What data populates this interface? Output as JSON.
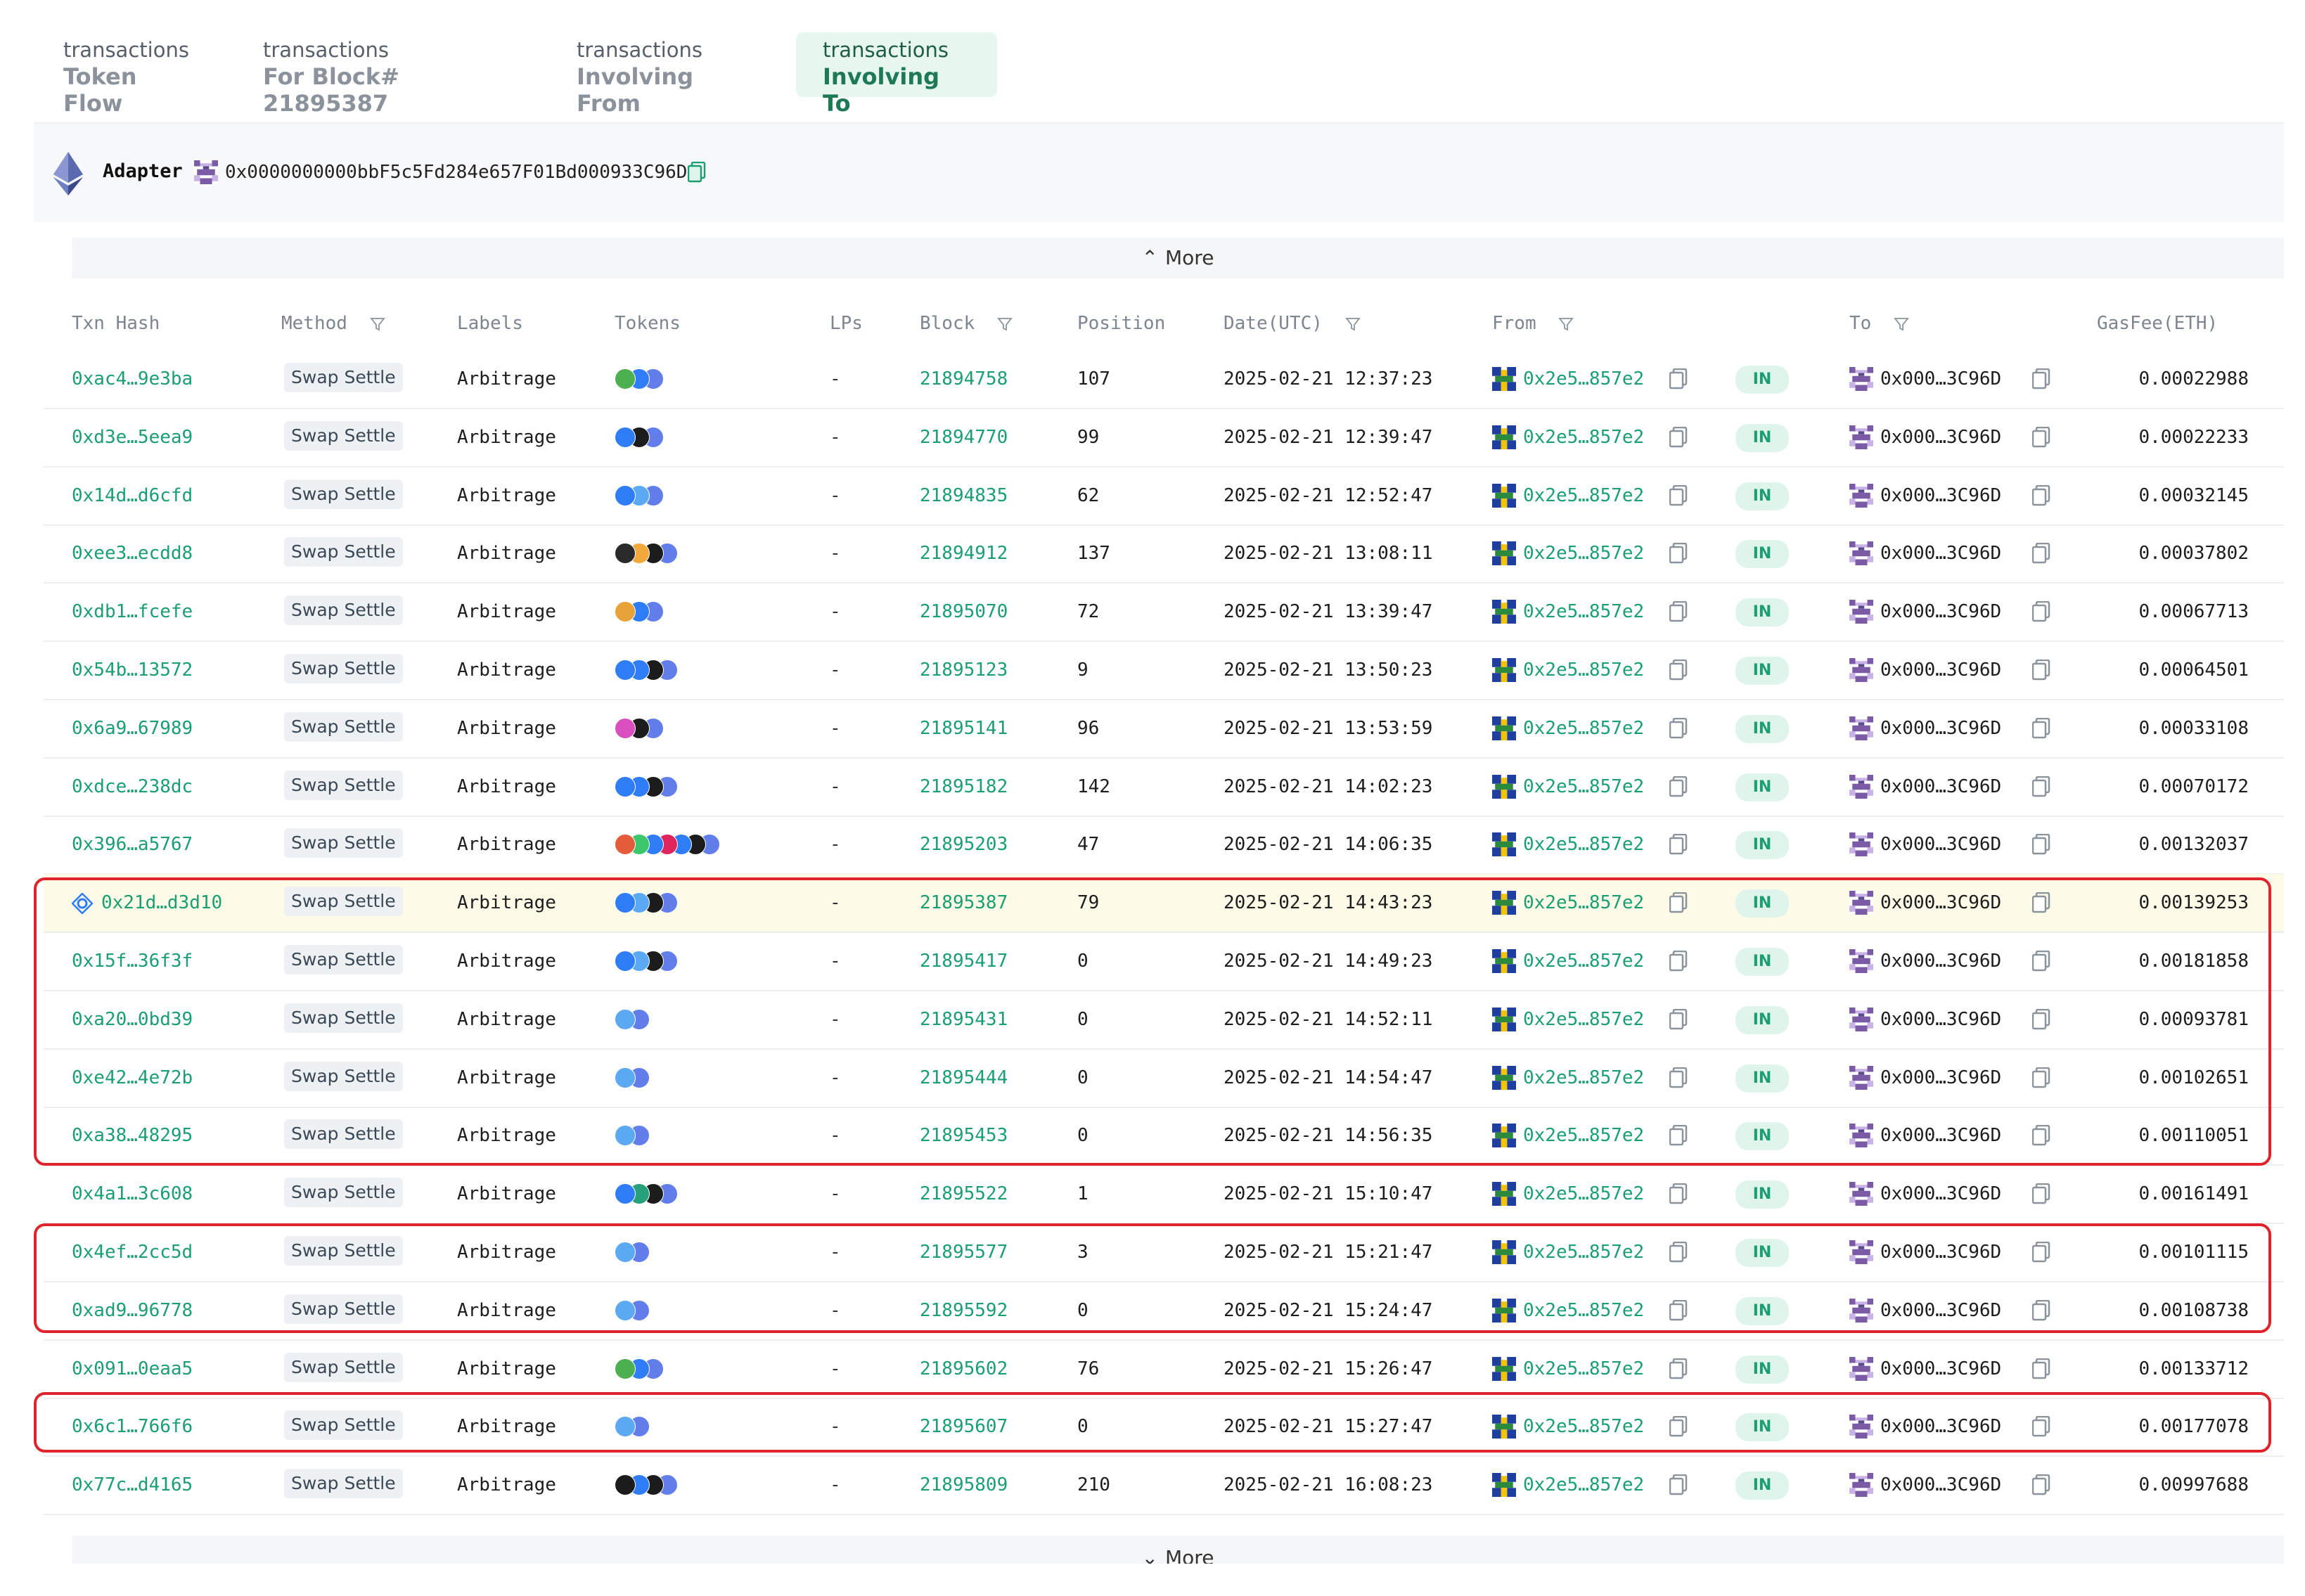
{
  "tabs": [
    {
      "small": "transactions",
      "main": "Token Flow",
      "active": false
    },
    {
      "small": "transactions",
      "main": "For Block# 21895387",
      "active": false
    },
    {
      "small": "transactions",
      "main": "Involving From",
      "active": false
    },
    {
      "small": "transactions",
      "main": "Involving To",
      "active": true
    }
  ],
  "adapter": {
    "label": "Adapter",
    "address": "0x0000000000bbF5c5Fd284e657F01Bd000933C96D",
    "icon": "ethereum-icon"
  },
  "more_label": "More",
  "columns": {
    "txn_hash": "Txn Hash",
    "method": "Method",
    "labels": "Labels",
    "tokens": "Tokens",
    "lps": "LPs",
    "block": "Block",
    "position": "Position",
    "date": "Date(UTC)",
    "from": "From",
    "to": "To",
    "gas": "GasFee(ETH)"
  },
  "rows": [
    {
      "hash": "0xac4…9e3ba",
      "method": "Swap Settle",
      "label": "Arbitrage",
      "tokens": [
        "#4caf50",
        "#2e7df6",
        "#627eea"
      ],
      "lps": "-",
      "block": "21894758",
      "position": "107",
      "date": "2025-02-21 12:37:23",
      "from": "0x2e5…857e2",
      "dir": "IN",
      "to": "0x000…3C96D",
      "gas": "0.00022988",
      "highlight": false
    },
    {
      "hash": "0xd3e…5eea9",
      "method": "Swap Settle",
      "label": "Arbitrage",
      "tokens": [
        "#2e7df6",
        "#1c1c1c",
        "#627eea"
      ],
      "lps": "-",
      "block": "21894770",
      "position": "99",
      "date": "2025-02-21 12:39:47",
      "from": "0x2e5…857e2",
      "dir": "IN",
      "to": "0x000…3C96D",
      "gas": "0.00022233",
      "highlight": false
    },
    {
      "hash": "0x14d…d6cfd",
      "method": "Swap Settle",
      "label": "Arbitrage",
      "tokens": [
        "#2e7df6",
        "#5aa9f2",
        "#627eea"
      ],
      "lps": "-",
      "block": "21894835",
      "position": "62",
      "date": "2025-02-21 12:52:47",
      "from": "0x2e5…857e2",
      "dir": "IN",
      "to": "0x000…3C96D",
      "gas": "0.00032145",
      "highlight": false
    },
    {
      "hash": "0xee3…ecdd8",
      "method": "Swap Settle",
      "label": "Arbitrage",
      "tokens": [
        "#2a2a2a",
        "#f2a93b",
        "#1c1c1c",
        "#627eea"
      ],
      "lps": "-",
      "block": "21894912",
      "position": "137",
      "date": "2025-02-21 13:08:11",
      "from": "0x2e5…857e2",
      "dir": "IN",
      "to": "0x000…3C96D",
      "gas": "0.00037802",
      "highlight": false
    },
    {
      "hash": "0xdb1…fcefe",
      "method": "Swap Settle",
      "label": "Arbitrage",
      "tokens": [
        "#e8a23a",
        "#2e7df6",
        "#627eea"
      ],
      "lps": "-",
      "block": "21895070",
      "position": "72",
      "date": "2025-02-21 13:39:47",
      "from": "0x2e5…857e2",
      "dir": "IN",
      "to": "0x000…3C96D",
      "gas": "0.00067713",
      "highlight": false
    },
    {
      "hash": "0x54b…13572",
      "method": "Swap Settle",
      "label": "Arbitrage",
      "tokens": [
        "#2e7df6",
        "#2e7df6",
        "#1c1c1c",
        "#627eea"
      ],
      "lps": "-",
      "block": "21895123",
      "position": "9",
      "date": "2025-02-21 13:50:23",
      "from": "0x2e5…857e2",
      "dir": "IN",
      "to": "0x000…3C96D",
      "gas": "0.00064501",
      "highlight": false
    },
    {
      "hash": "0x6a9…67989",
      "method": "Swap Settle",
      "label": "Arbitrage",
      "tokens": [
        "#d94fbf",
        "#1c1c1c",
        "#627eea"
      ],
      "lps": "-",
      "block": "21895141",
      "position": "96",
      "date": "2025-02-21 13:53:59",
      "from": "0x2e5…857e2",
      "dir": "IN",
      "to": "0x000…3C96D",
      "gas": "0.00033108",
      "highlight": false
    },
    {
      "hash": "0xdce…238dc",
      "method": "Swap Settle",
      "label": "Arbitrage",
      "tokens": [
        "#2e7df6",
        "#2e7df6",
        "#1c1c1c",
        "#627eea"
      ],
      "lps": "-",
      "block": "21895182",
      "position": "142",
      "date": "2025-02-21 14:02:23",
      "from": "0x2e5…857e2",
      "dir": "IN",
      "to": "0x000…3C96D",
      "gas": "0.00070172",
      "highlight": false
    },
    {
      "hash": "0x396…a5767",
      "method": "Swap Settle",
      "label": "Arbitrage",
      "tokens": [
        "#e45c3a",
        "#3cc76a",
        "#2e7df6",
        "#e0245e",
        "#2e7df6",
        "#1c1c1c",
        "#627eea"
      ],
      "lps": "-",
      "block": "21895203",
      "position": "47",
      "date": "2025-02-21 14:06:35",
      "from": "0x2e5…857e2",
      "dir": "IN",
      "to": "0x000…3C96D",
      "gas": "0.00132037",
      "highlight": false
    },
    {
      "hash": "0x21d…d3d10",
      "method": "Swap Settle",
      "label": "Arbitrage",
      "tokens": [
        "#2e7df6",
        "#5aa9f2",
        "#1c1c1c",
        "#627eea"
      ],
      "lps": "-",
      "block": "21895387",
      "position": "79",
      "date": "2025-02-21 14:43:23",
      "from": "0x2e5…857e2",
      "dir": "IN",
      "to": "0x000…3C96D",
      "gas": "0.00139253",
      "highlight": true
    },
    {
      "hash": "0x15f…36f3f",
      "method": "Swap Settle",
      "label": "Arbitrage",
      "tokens": [
        "#2e7df6",
        "#5aa9f2",
        "#1c1c1c",
        "#627eea"
      ],
      "lps": "-",
      "block": "21895417",
      "position": "0",
      "date": "2025-02-21 14:49:23",
      "from": "0x2e5…857e2",
      "dir": "IN",
      "to": "0x000…3C96D",
      "gas": "0.00181858",
      "highlight": false
    },
    {
      "hash": "0xa20…0bd39",
      "method": "Swap Settle",
      "label": "Arbitrage",
      "tokens": [
        "#5aa9f2",
        "#627eea"
      ],
      "lps": "-",
      "block": "21895431",
      "position": "0",
      "date": "2025-02-21 14:52:11",
      "from": "0x2e5…857e2",
      "dir": "IN",
      "to": "0x000…3C96D",
      "gas": "0.00093781",
      "highlight": false
    },
    {
      "hash": "0xe42…4e72b",
      "method": "Swap Settle",
      "label": "Arbitrage",
      "tokens": [
        "#5aa9f2",
        "#627eea"
      ],
      "lps": "-",
      "block": "21895444",
      "position": "0",
      "date": "2025-02-21 14:54:47",
      "from": "0x2e5…857e2",
      "dir": "IN",
      "to": "0x000…3C96D",
      "gas": "0.00102651",
      "highlight": false
    },
    {
      "hash": "0xa38…48295",
      "method": "Swap Settle",
      "label": "Arbitrage",
      "tokens": [
        "#5aa9f2",
        "#627eea"
      ],
      "lps": "-",
      "block": "21895453",
      "position": "0",
      "date": "2025-02-21 14:56:35",
      "from": "0x2e5…857e2",
      "dir": "IN",
      "to": "0x000…3C96D",
      "gas": "0.00110051",
      "highlight": false
    },
    {
      "hash": "0x4a1…3c608",
      "method": "Swap Settle",
      "label": "Arbitrage",
      "tokens": [
        "#2e7df6",
        "#27a17a",
        "#1c1c1c",
        "#627eea"
      ],
      "lps": "-",
      "block": "21895522",
      "position": "1",
      "date": "2025-02-21 15:10:47",
      "from": "0x2e5…857e2",
      "dir": "IN",
      "to": "0x000…3C96D",
      "gas": "0.00161491",
      "highlight": false
    },
    {
      "hash": "0x4ef…2cc5d",
      "method": "Swap Settle",
      "label": "Arbitrage",
      "tokens": [
        "#5aa9f2",
        "#627eea"
      ],
      "lps": "-",
      "block": "21895577",
      "position": "3",
      "date": "2025-02-21 15:21:47",
      "from": "0x2e5…857e2",
      "dir": "IN",
      "to": "0x000…3C96D",
      "gas": "0.00101115",
      "highlight": false
    },
    {
      "hash": "0xad9…96778",
      "method": "Swap Settle",
      "label": "Arbitrage",
      "tokens": [
        "#5aa9f2",
        "#627eea"
      ],
      "lps": "-",
      "block": "21895592",
      "position": "0",
      "date": "2025-02-21 15:24:47",
      "from": "0x2e5…857e2",
      "dir": "IN",
      "to": "0x000…3C96D",
      "gas": "0.00108738",
      "highlight": false
    },
    {
      "hash": "0x091…0eaa5",
      "method": "Swap Settle",
      "label": "Arbitrage",
      "tokens": [
        "#4caf50",
        "#2e7df6",
        "#627eea"
      ],
      "lps": "-",
      "block": "21895602",
      "position": "76",
      "date": "2025-02-21 15:26:47",
      "from": "0x2e5…857e2",
      "dir": "IN",
      "to": "0x000…3C96D",
      "gas": "0.00133712",
      "highlight": false
    },
    {
      "hash": "0x6c1…766f6",
      "method": "Swap Settle",
      "label": "Arbitrage",
      "tokens": [
        "#5aa9f2",
        "#627eea"
      ],
      "lps": "-",
      "block": "21895607",
      "position": "0",
      "date": "2025-02-21 15:27:47",
      "from": "0x2e5…857e2",
      "dir": "IN",
      "to": "0x000…3C96D",
      "gas": "0.00177078",
      "highlight": false
    },
    {
      "hash": "0x77c…d4165",
      "method": "Swap Settle",
      "label": "Arbitrage",
      "tokens": [
        "#1c1c1c",
        "#2e7df6",
        "#1c1c1c",
        "#627eea"
      ],
      "lps": "-",
      "block": "21895809",
      "position": "210",
      "date": "2025-02-21 16:08:23",
      "from": "0x2e5…857e2",
      "dir": "IN",
      "to": "0x000…3C96D",
      "gas": "0.00997688",
      "highlight": false
    }
  ],
  "colors": {
    "accent_green": "#1a9e72",
    "highlight_row": "#fdfbe8",
    "annotation_red": "#e0242c",
    "in_badge_bg": "#dff5eb"
  }
}
